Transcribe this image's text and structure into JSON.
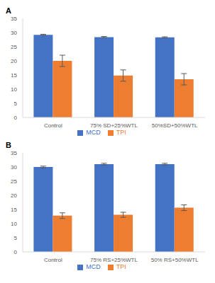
{
  "chart_data": [
    {
      "type": "bar",
      "title": "A",
      "categories": [
        "Control",
        "75% SD+25%WTL",
        "50%SD+50%WTL"
      ],
      "series": [
        {
          "name": "MCD",
          "color": "#4472c4",
          "values": [
            29.2,
            28.4,
            28.3
          ],
          "errors": [
            0.2,
            0.2,
            0.2
          ]
        },
        {
          "name": "TPI",
          "color": "#ed7d31",
          "values": [
            20,
            14.8,
            13.5
          ],
          "errors": [
            2,
            2,
            2
          ]
        }
      ],
      "ylim": [
        0,
        35
      ],
      "yticks": [
        0,
        5,
        10,
        15,
        20,
        25,
        30,
        35
      ],
      "grid": false,
      "legend": "bottom"
    },
    {
      "type": "bar",
      "title": "B",
      "categories": [
        "Control",
        "75% RS+25%WTL",
        "50% RS+50%WTL"
      ],
      "series": [
        {
          "name": "MCD",
          "color": "#4472c4",
          "values": [
            30,
            31,
            31
          ],
          "errors": [
            0.3,
            0.3,
            0.3
          ]
        },
        {
          "name": "TPI",
          "color": "#ed7d31",
          "values": [
            12.8,
            13.1,
            15.6
          ],
          "errors": [
            1,
            0.9,
            1
          ]
        }
      ],
      "ylim": [
        0,
        35
      ],
      "yticks": [
        0,
        5,
        10,
        15,
        20,
        25,
        30,
        35
      ],
      "grid": false,
      "legend": "bottom"
    }
  ]
}
